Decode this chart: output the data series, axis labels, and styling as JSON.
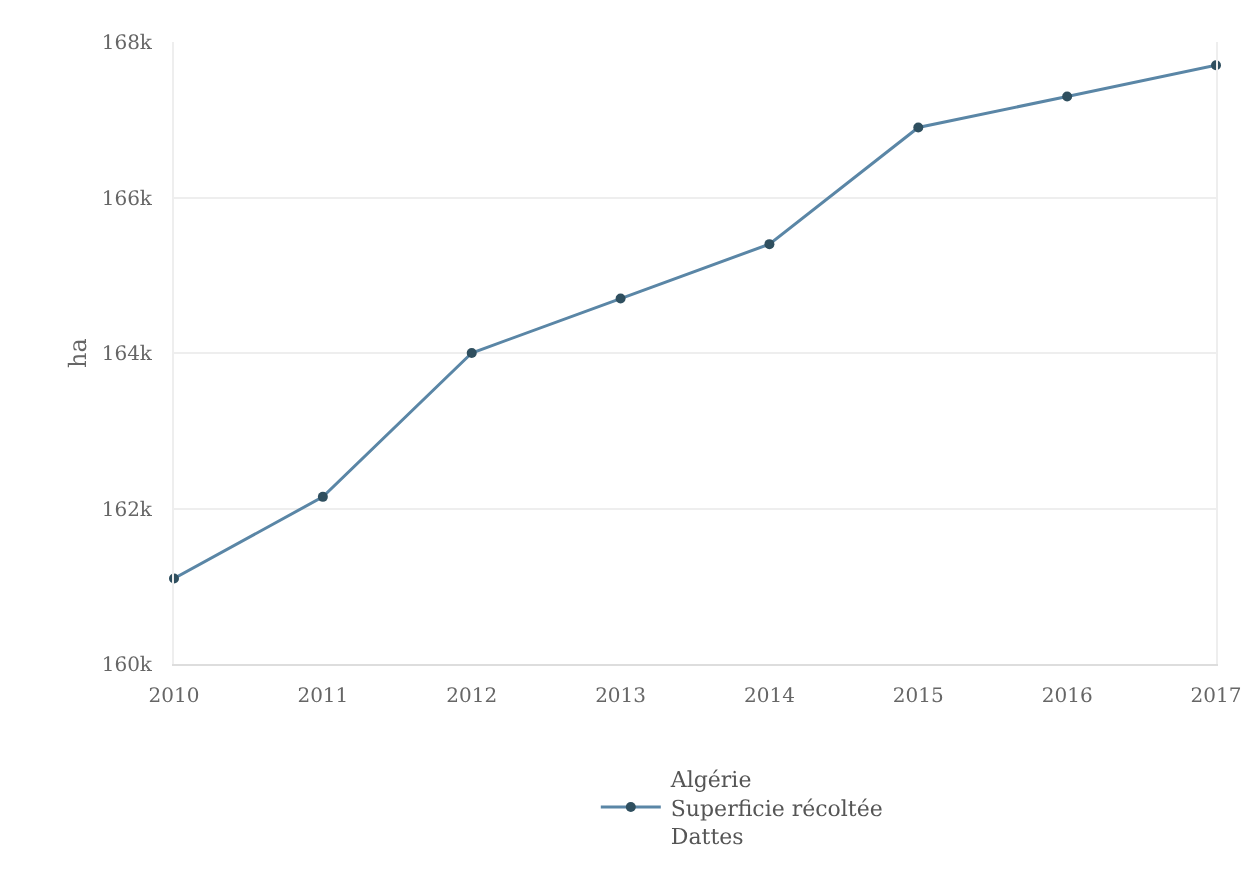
{
  "chart_data": {
    "type": "line",
    "ylabel": "ha",
    "x": [
      2010,
      2011,
      2012,
      2013,
      2014,
      2015,
      2016,
      2017
    ],
    "series": [
      {
        "name": "Algérie\nSuperficie récoltée\nDattes",
        "color": "#5a86a6",
        "values": [
          161100,
          162150,
          164000,
          164700,
          165400,
          166900,
          167300,
          167700
        ]
      }
    ],
    "xlim": [
      2010,
      2017
    ],
    "xticks": [
      2010,
      2011,
      2012,
      2013,
      2014,
      2015,
      2016,
      2017
    ],
    "ylim": [
      160000,
      168000
    ],
    "yticks": [
      {
        "value": 160000,
        "label": "160k"
      },
      {
        "value": 162000,
        "label": "162k"
      },
      {
        "value": 164000,
        "label": "164k"
      },
      {
        "value": 166000,
        "label": "166k"
      },
      {
        "value": 168000,
        "label": "168k"
      }
    ],
    "grid": "y",
    "legend": "bottom",
    "marker": "circle",
    "line_style": "solid"
  }
}
